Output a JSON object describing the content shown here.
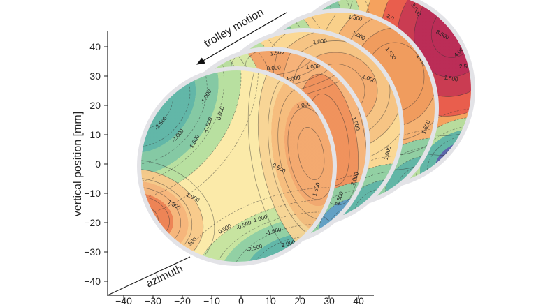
{
  "chart_data": {
    "type": "contour",
    "ylabel": "vertical position [mm]",
    "ylim": [
      -45,
      45
    ],
    "yticks": [
      "40",
      "30",
      "20",
      "10",
      "0",
      "−10",
      "−20",
      "−30",
      "−40"
    ],
    "ytick_values": [
      40,
      30,
      20,
      10,
      0,
      -10,
      -20,
      -30,
      -40
    ],
    "xticks": [
      "−40",
      "−30",
      "−20",
      "−10",
      "0",
      "10",
      "20",
      "30",
      "40"
    ],
    "xtick_values": [
      -40,
      -30,
      -20,
      -10,
      0,
      10,
      20,
      30,
      40
    ],
    "annotations": {
      "trolley_motion": "trolley motion",
      "azimuth": "azimuth"
    },
    "colormap": [
      "#5460ad",
      "#5ab4a8",
      "#b5dfa0",
      "#fbeaa9",
      "#f6b37a",
      "#ec7f52",
      "#b82454"
    ],
    "disk_count": 5,
    "disks": [
      {
        "contour_labels": [
          "-2.500",
          "-2.000",
          "-1.500",
          "-1.000",
          "-0.500",
          "0.000",
          "0.500",
          "1.000",
          "1.500",
          "1.000",
          "1.500",
          "-2.000",
          "500",
          "0.000",
          "-0.500",
          "-1.000",
          "-1.500",
          "-2.000",
          "-2.500"
        ]
      },
      {
        "contour_labels": [
          "1.500",
          "1.000",
          "0.000",
          "1.000",
          "1.500",
          "2.000",
          "1.500"
        ]
      },
      {
        "contour_labels": [
          "1.000",
          "1.000",
          "1.000"
        ]
      },
      {
        "contour_labels": [
          "1.500",
          "1.000",
          "1.500",
          "2.000",
          "1.500"
        ]
      },
      {
        "contour_labels": [
          "3.000",
          "3.500",
          "4.000",
          "2.500",
          "1.500",
          "2.0"
        ]
      }
    ]
  }
}
